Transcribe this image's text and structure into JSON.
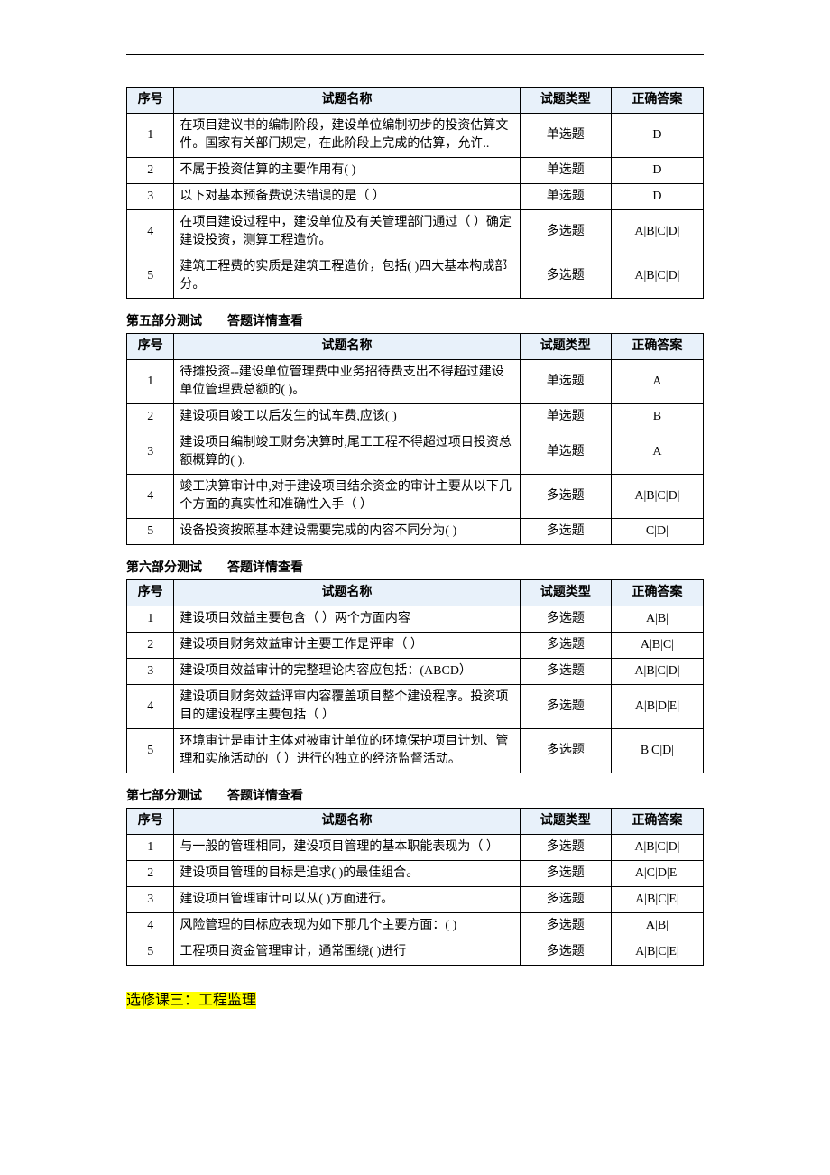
{
  "tables": [
    {
      "title_parts": null,
      "columns": [
        "序号",
        "试题名称",
        "试题类型",
        "正确答案"
      ],
      "rows": [
        {
          "num": "1",
          "name": "在项目建议书的编制阶段，建设单位编制初步的投资估算文件。国家有关部门规定，在此阶段上完成的估算，允许..",
          "type": "单选题",
          "ans": "D"
        },
        {
          "num": "2",
          "name": "不属于投资估算的主要作用有( )",
          "type": "单选题",
          "ans": "D"
        },
        {
          "num": "3",
          "name": "以下对基本预备费说法错误的是（ ）",
          "type": "单选题",
          "ans": "D"
        },
        {
          "num": "4",
          "name": "在项目建设过程中，建设单位及有关管理部门通过（ ）确定建设投资，测算工程造价。",
          "type": "多选题",
          "ans": "A|B|C|D|"
        },
        {
          "num": "5",
          "name": "建筑工程费的实质是建筑工程造价，包括( )四大基本构成部分。",
          "type": "多选题",
          "ans": "A|B|C|D|"
        }
      ]
    },
    {
      "title_parts": [
        "第五部分测试",
        "答题详情查看"
      ],
      "columns": [
        "序号",
        "试题名称",
        "试题类型",
        "正确答案"
      ],
      "rows": [
        {
          "num": "1",
          "name": "待摊投资--建设单位管理费中业务招待费支出不得超过建设单位管理费总额的( )。",
          "type": "单选题",
          "ans": "A"
        },
        {
          "num": "2",
          "name": "建设项目竣工以后发生的试车费,应该( )",
          "type": "单选题",
          "ans": "B"
        },
        {
          "num": "3",
          "name": "建设项目编制竣工财务决算时,尾工工程不得超过项目投资总额概算的( ).",
          "type": "单选题",
          "ans": "A"
        },
        {
          "num": "4",
          "name": "竣工决算审计中,对于建设项目结余资金的审计主要从以下几个方面的真实性和准确性入手（ ）",
          "type": "多选题",
          "ans": "A|B|C|D|"
        },
        {
          "num": "5",
          "name": "设备投资按照基本建设需要完成的内容不同分为( )",
          "type": "多选题",
          "ans": "C|D|"
        }
      ]
    },
    {
      "title_parts": [
        "第六部分测试",
        "答题详情查看"
      ],
      "columns": [
        "序号",
        "试题名称",
        "试题类型",
        "正确答案"
      ],
      "rows": [
        {
          "num": "1",
          "name": "建设项目效益主要包含（ ）两个方面内容",
          "type": "多选题",
          "ans": "A|B|"
        },
        {
          "num": "2",
          "name": "建设项目财务效益审计主要工作是评审（ ）",
          "type": "多选题",
          "ans": "A|B|C|"
        },
        {
          "num": "3",
          "name": "建设项目效益审计的完整理论内容应包括：(ABCD）",
          "type": "多选题",
          "ans": "A|B|C|D|"
        },
        {
          "num": "4",
          "name": "建设项目财务效益评审内容覆盖项目整个建设程序。投资项目的建设程序主要包括（ ）",
          "type": "多选题",
          "ans": "A|B|D|E|"
        },
        {
          "num": "5",
          "name": "环境审计是审计主体对被审计单位的环境保护项目计划、管理和实施活动的（ ）进行的独立的经济监督活动。",
          "type": "多选题",
          "ans": "B|C|D|"
        }
      ]
    },
    {
      "title_parts": [
        "第七部分测试",
        "答题详情查看"
      ],
      "columns": [
        "序号",
        "试题名称",
        "试题类型",
        "正确答案"
      ],
      "rows": [
        {
          "num": "1",
          "name": "与一般的管理相同，建设项目管理的基本职能表现为（ ）",
          "type": "多选题",
          "ans": "A|B|C|D|"
        },
        {
          "num": "2",
          "name": "建设项目管理的目标是追求( )的最佳组合。",
          "type": "多选题",
          "ans": "A|C|D|E|"
        },
        {
          "num": "3",
          "name": "建设项目管理审计可以从( )方面进行。",
          "type": "多选题",
          "ans": "A|B|C|E|"
        },
        {
          "num": "4",
          "name": "风险管理的目标应表现为如下那几个主要方面：( )",
          "type": "多选题",
          "ans": "A|B|"
        },
        {
          "num": "5",
          "name": "工程项目资金管理审计，通常围绕( )进行",
          "type": "多选题",
          "ans": "A|B|C|E|"
        }
      ]
    }
  ],
  "highlight": "选修课三：工程监理"
}
